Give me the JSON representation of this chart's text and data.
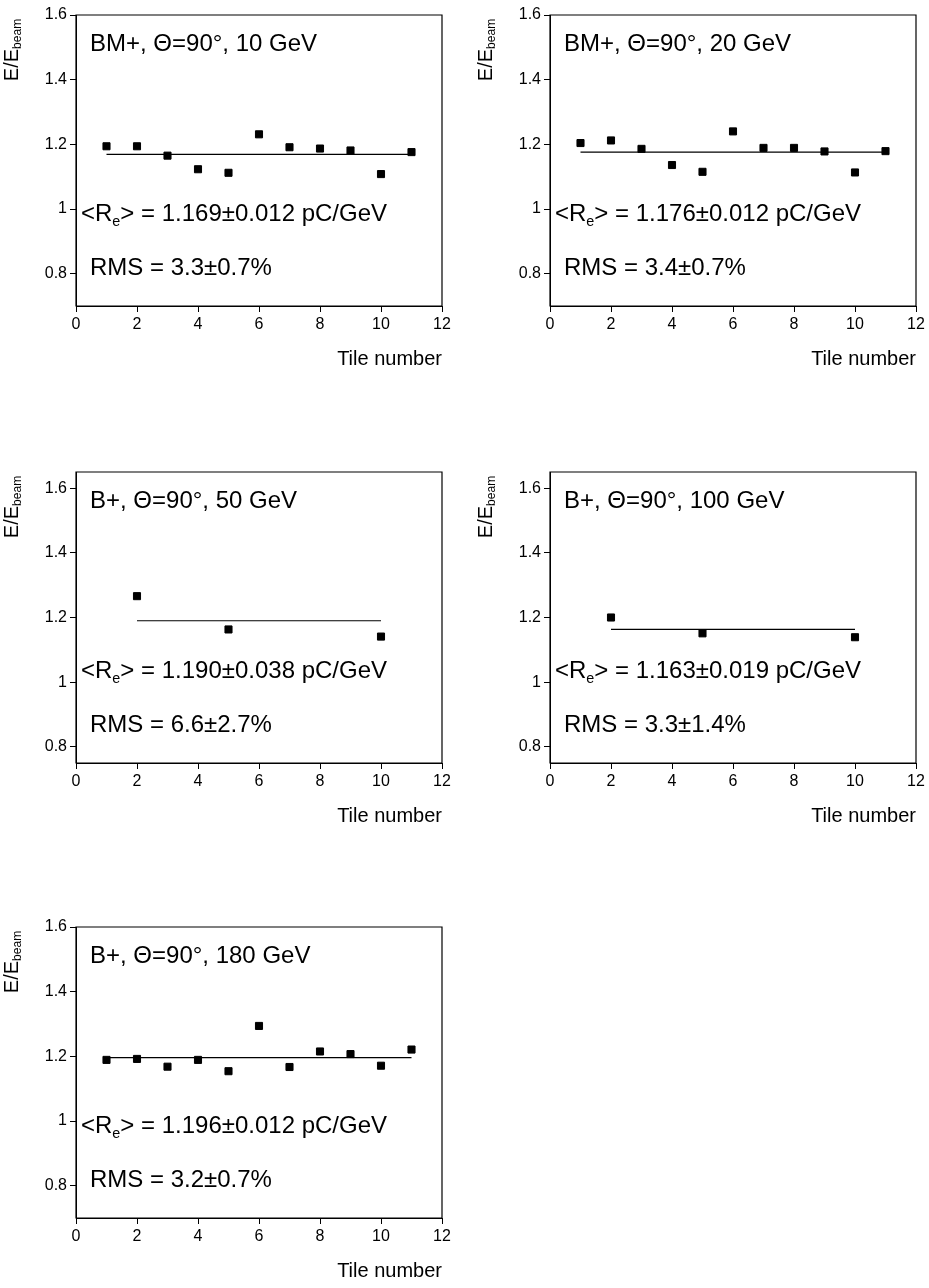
{
  "chart_data": [
    {
      "type": "scatter",
      "title": "BM+, Θ=90°, 10 GeV",
      "xlabel": "Tile number",
      "ylabel": "E/E$_{beam}$",
      "annotations": [
        "<R$_{e}$> = 1.169±0.012 pC/GeV",
        "RMS = 3.3±0.7%"
      ],
      "xlim": [
        0,
        12
      ],
      "xticks": [
        0,
        2,
        4,
        6,
        8,
        10,
        12
      ],
      "ylim": [
        0.7,
        1.6
      ],
      "yticks": [
        0.8,
        1,
        1.2,
        1.4,
        1.6
      ],
      "series": [
        {
          "type": "scatter",
          "marker": "square",
          "color": "#000000",
          "x": [
            1,
            2,
            3,
            4,
            5,
            6,
            7,
            8,
            9,
            10,
            11
          ],
          "values": [
            1.194,
            1.194,
            1.165,
            1.123,
            1.112,
            1.231,
            1.191,
            1.187,
            1.181,
            1.108,
            1.176
          ]
        },
        {
          "type": "line",
          "color": "#000000",
          "x": [
            1,
            11
          ],
          "values": [
            1.169,
            1.169
          ]
        }
      ]
    },
    {
      "type": "scatter",
      "title": "BM+, Θ=90°, 20 GeV",
      "xlabel": "Tile number",
      "ylabel": "E/E$_{beam}$",
      "annotations": [
        "<R$_{e}$> = 1.176±0.012 pC/GeV",
        "RMS = 3.4±0.7%"
      ],
      "xlim": [
        0,
        12
      ],
      "xticks": [
        0,
        2,
        4,
        6,
        8,
        10,
        12
      ],
      "ylim": [
        0.7,
        1.6
      ],
      "yticks": [
        0.8,
        1,
        1.2,
        1.4,
        1.6
      ],
      "series": [
        {
          "type": "scatter",
          "marker": "square",
          "color": "#000000",
          "x": [
            1,
            2,
            3,
            4,
            5,
            6,
            7,
            8,
            9,
            10,
            11
          ],
          "values": [
            1.204,
            1.212,
            1.186,
            1.136,
            1.115,
            1.24,
            1.189,
            1.189,
            1.178,
            1.113,
            1.179
          ]
        },
        {
          "type": "line",
          "color": "#000000",
          "x": [
            1,
            11
          ],
          "values": [
            1.176,
            1.176
          ]
        }
      ]
    },
    {
      "type": "scatter",
      "title": "B+, Θ=90°, 50 GeV",
      "xlabel": "Tile number",
      "ylabel": "E/E$_{beam}$",
      "annotations": [
        "<R$_{e}$> = 1.190±0.038 pC/GeV",
        "RMS = 6.6±2.7%"
      ],
      "xlim": [
        0,
        12
      ],
      "xticks": [
        0,
        2,
        4,
        6,
        8,
        10,
        12
      ],
      "ylim": [
        0.75,
        1.65
      ],
      "yticks": [
        0.8,
        1,
        1.2,
        1.4,
        1.6
      ],
      "series": [
        {
          "type": "scatter",
          "marker": "square",
          "color": "#000000",
          "x": [
            2,
            5,
            10
          ],
          "values": [
            1.266,
            1.163,
            1.141
          ]
        },
        {
          "type": "line",
          "color": "#000000",
          "x": [
            2,
            10
          ],
          "values": [
            1.19,
            1.19
          ]
        }
      ]
    },
    {
      "type": "scatter",
      "title": "B+, Θ=90°, 100 GeV",
      "xlabel": "Tile number",
      "ylabel": "E/E$_{beam}$",
      "annotations": [
        "<R$_{e}$> = 1.163±0.019 pC/GeV",
        "RMS = 3.3±1.4%"
      ],
      "xlim": [
        0,
        12
      ],
      "xticks": [
        0,
        2,
        4,
        6,
        8,
        10,
        12
      ],
      "ylim": [
        0.75,
        1.65
      ],
      "yticks": [
        0.8,
        1,
        1.2,
        1.4,
        1.6
      ],
      "series": [
        {
          "type": "scatter",
          "marker": "square",
          "color": "#000000",
          "x": [
            2,
            5,
            10
          ],
          "values": [
            1.2,
            1.151,
            1.139
          ]
        },
        {
          "type": "line",
          "color": "#000000",
          "x": [
            2,
            10
          ],
          "values": [
            1.163,
            1.163
          ]
        }
      ]
    },
    {
      "type": "scatter",
      "title": "B+, Θ=90°, 180 GeV",
      "xlabel": "Tile number",
      "ylabel": "E/E$_{beam}$",
      "annotations": [
        "<R$_{e}$> = 1.196±0.012 pC/GeV",
        "RMS = 3.2±0.7%"
      ],
      "xlim": [
        0,
        12
      ],
      "xticks": [
        0,
        2,
        4,
        6,
        8,
        10,
        12
      ],
      "ylim": [
        0.7,
        1.6
      ],
      "yticks": [
        0.8,
        1,
        1.2,
        1.4,
        1.6
      ],
      "series": [
        {
          "type": "scatter",
          "marker": "square",
          "color": "#000000",
          "x": [
            1,
            2,
            3,
            4,
            5,
            6,
            7,
            8,
            9,
            10,
            11
          ],
          "values": [
            1.189,
            1.192,
            1.168,
            1.189,
            1.154,
            1.294,
            1.167,
            1.215,
            1.207,
            1.171,
            1.221
          ]
        },
        {
          "type": "line",
          "color": "#000000",
          "x": [
            1,
            11
          ],
          "values": [
            1.196,
            1.196
          ]
        }
      ]
    }
  ]
}
